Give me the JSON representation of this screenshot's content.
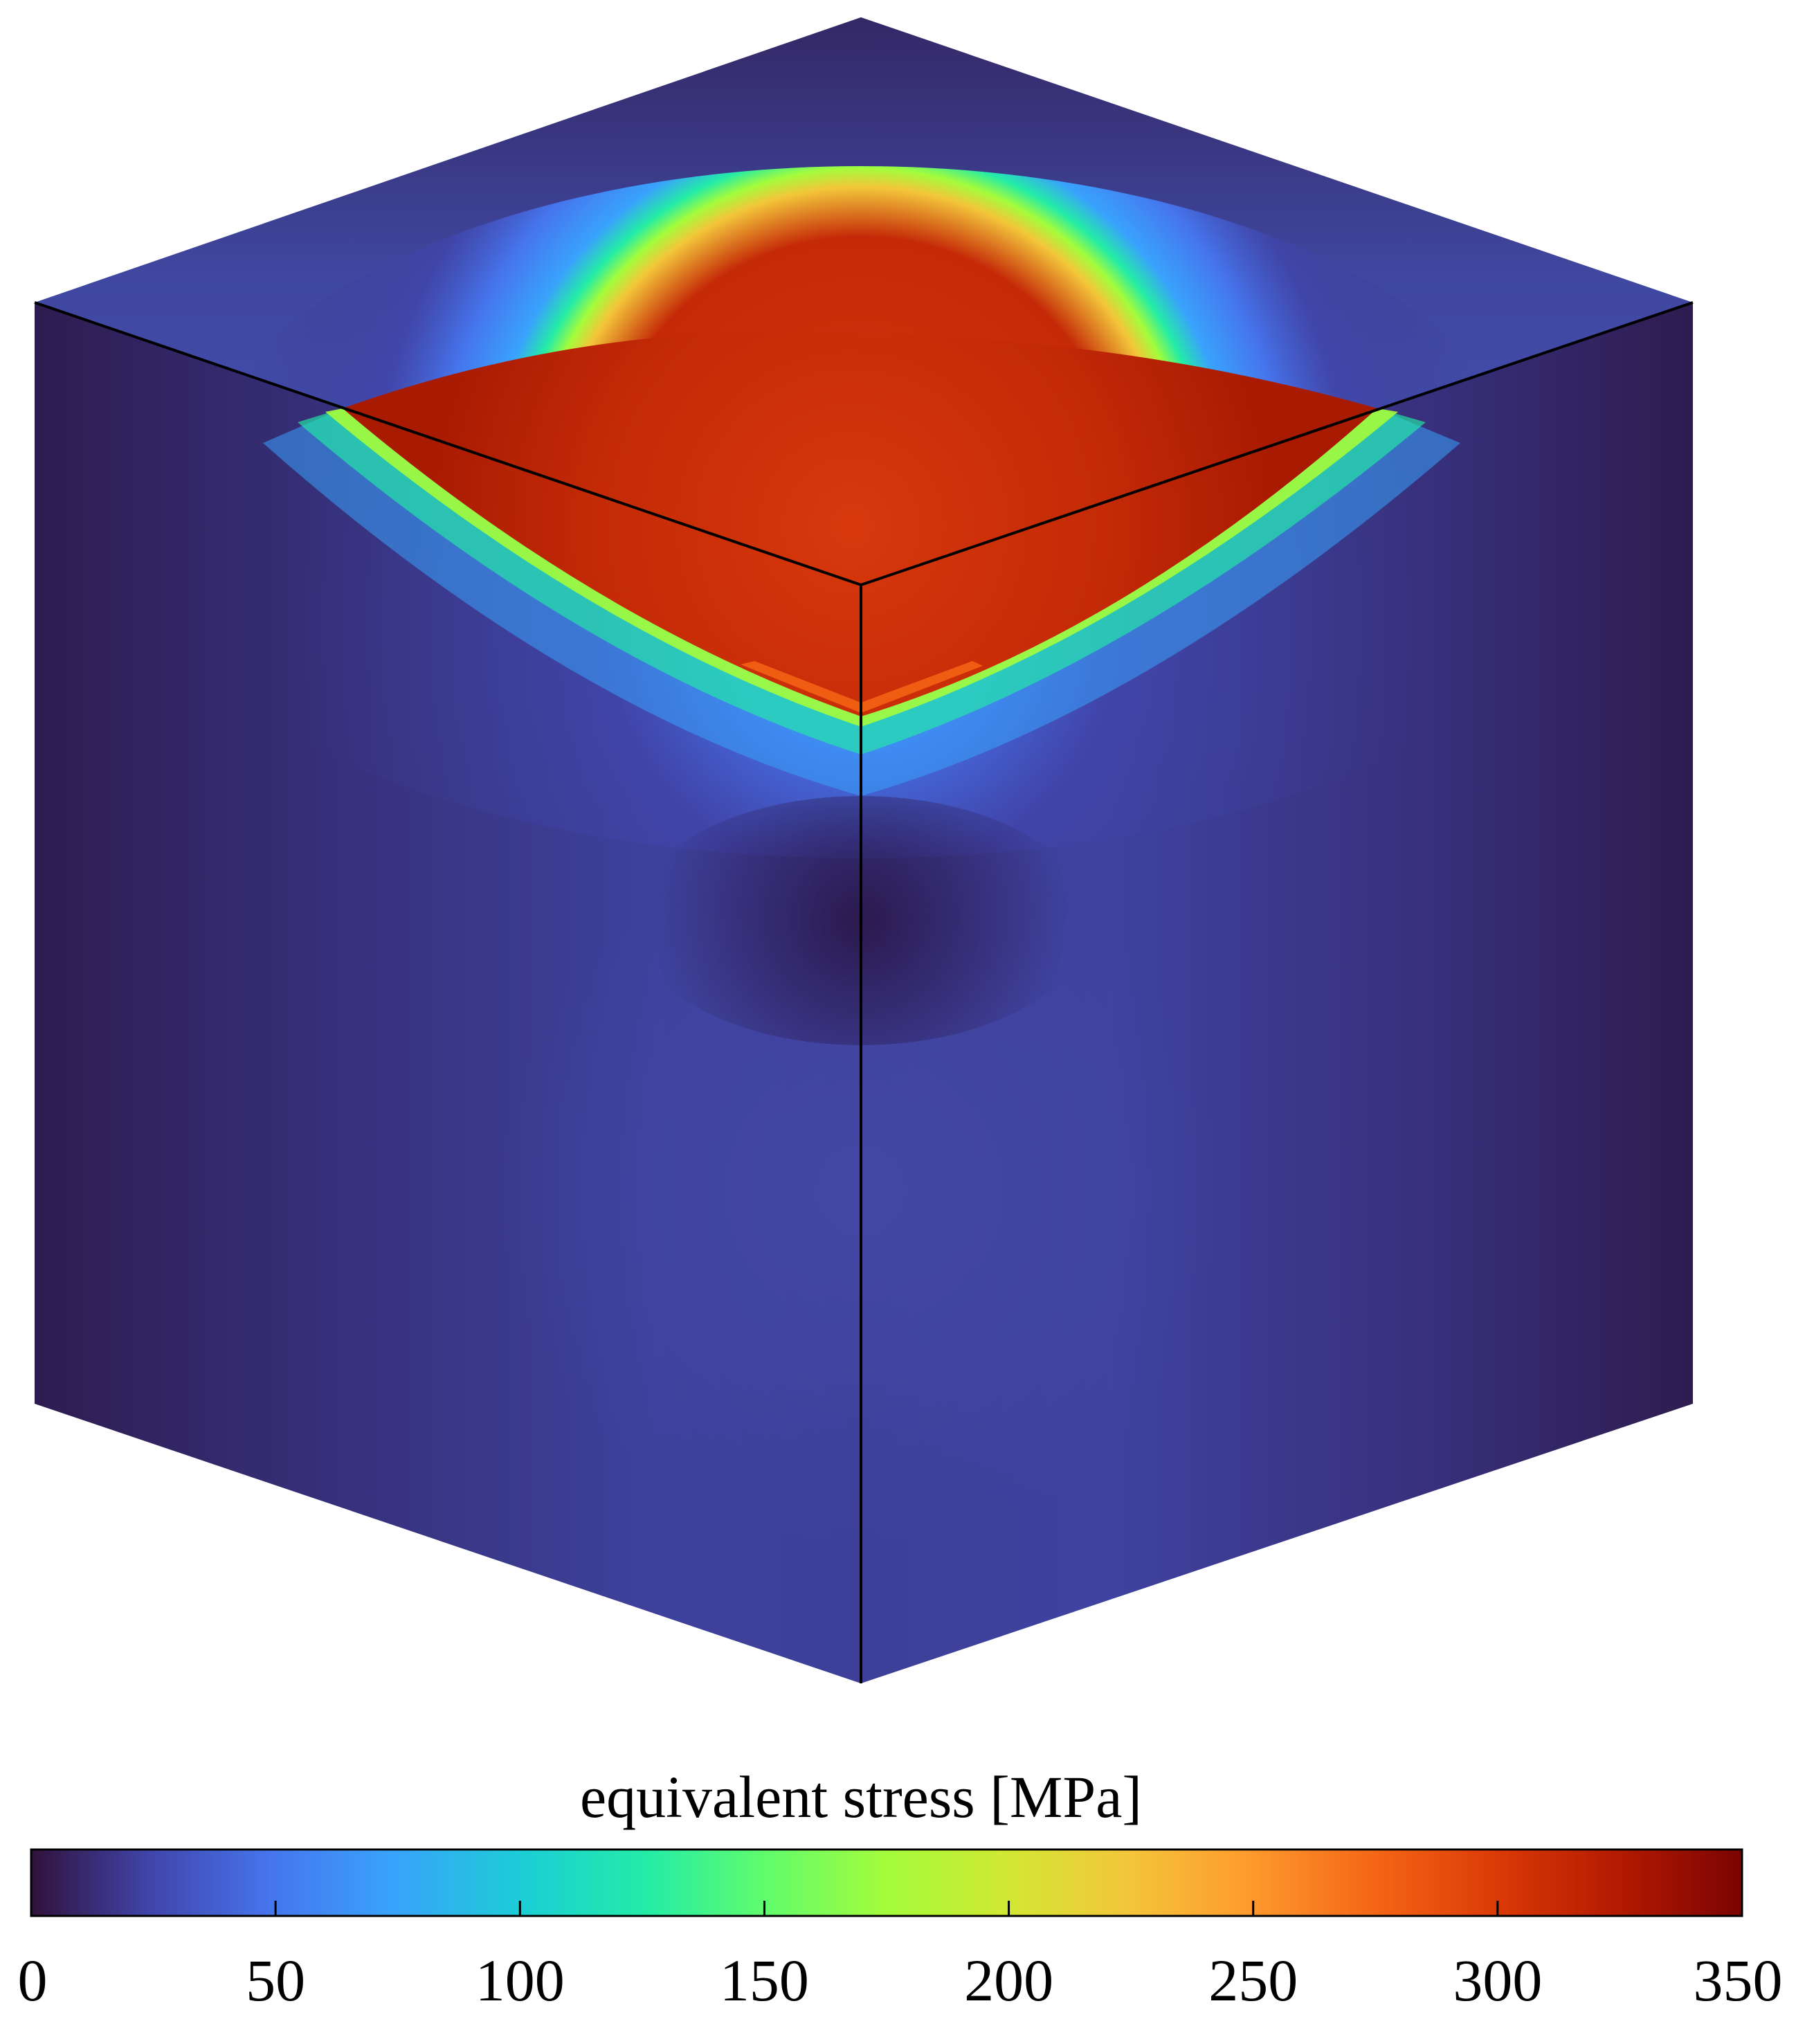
{
  "colorbar": {
    "title": "equivalent stress [MPa]",
    "min": 0,
    "max": 350,
    "ticks": [
      0,
      50,
      100,
      150,
      200,
      250,
      300,
      350
    ],
    "tick_labels": [
      "0",
      "50",
      "100",
      "150",
      "200",
      "250",
      "300",
      "350"
    ],
    "colormap": "turbo",
    "colors": [
      "#30123b",
      "#4145ab",
      "#4675ed",
      "#39a2fc",
      "#1bcfd4",
      "#24eca6",
      "#61fc6c",
      "#a4fc3b",
      "#d1e834",
      "#f3c63a",
      "#fe9b2d",
      "#f36315",
      "#d93806",
      "#b11901",
      "#7a0402"
    ]
  },
  "field": {
    "hot_color": "#c52a08",
    "hot_color_center": "#d4350c",
    "cold_color": "#3a3b8e",
    "dark_color": "#2c1c52"
  }
}
